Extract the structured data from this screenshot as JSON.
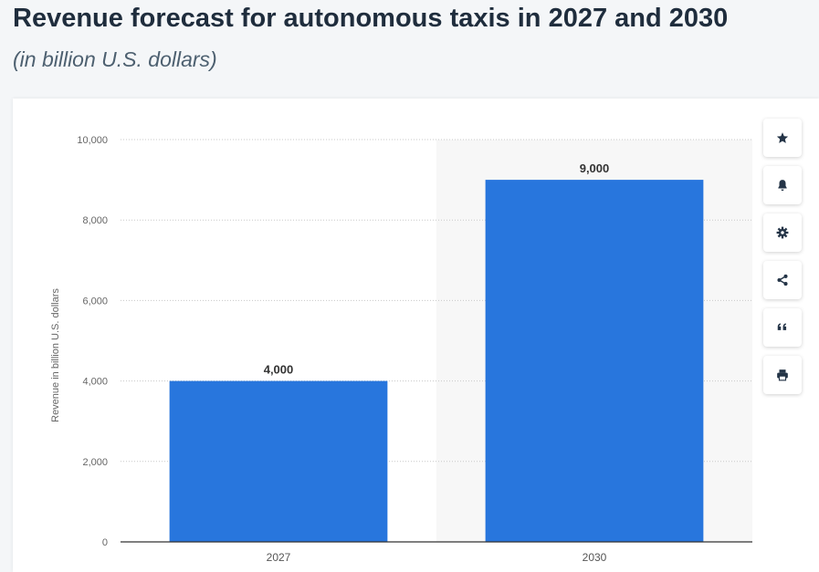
{
  "header": {
    "title": "Revenue forecast for autonomous taxis in 2027 and 2030",
    "subtitle": "(in billion U.S. dollars)"
  },
  "toolbar": {
    "items": [
      {
        "name": "star-icon"
      },
      {
        "name": "bell-icon"
      },
      {
        "name": "gear-icon"
      },
      {
        "name": "share-icon"
      },
      {
        "name": "quote-icon"
      },
      {
        "name": "print-icon"
      }
    ]
  },
  "chart_data": {
    "type": "bar",
    "categories": [
      "2027",
      "2030"
    ],
    "values": [
      4000,
      9000
    ],
    "value_labels": [
      "4,000",
      "9,000"
    ],
    "ylabel": "Revenue in billion U.S. dollars",
    "ylim": [
      0,
      10000
    ],
    "yticks": [
      0,
      2000,
      4000,
      6000,
      8000,
      10000
    ],
    "ytick_labels": [
      "0",
      "2,000",
      "4,000",
      "6,000",
      "8,000",
      "10,000"
    ],
    "bar_color": "#2876dd",
    "highlight_category": "2030",
    "highlight_color": "#f7f7f7",
    "grid": true,
    "legend": "none"
  }
}
